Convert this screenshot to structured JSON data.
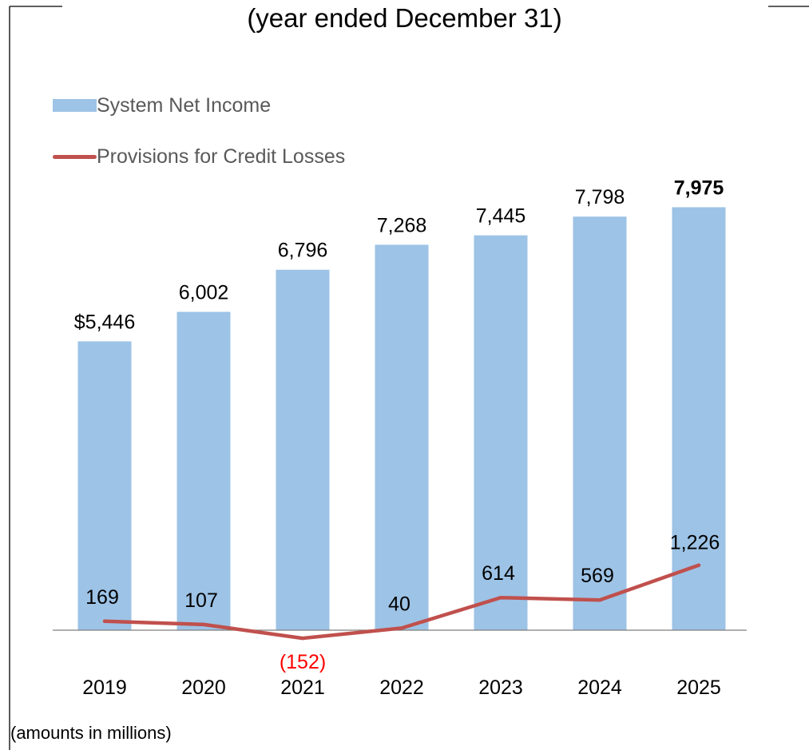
{
  "subtitle": "(year ended December 31)",
  "footnote": "(amounts in millions)",
  "legend": {
    "bar_label": "System Net Income",
    "line_label": "Provisions for Credit Losses"
  },
  "colors": {
    "bar": "#9dc3e6",
    "line": "#c0504d",
    "negative_label": "#ff0000",
    "axis": "#7f7f7f"
  },
  "chart_data": {
    "type": "bar",
    "categories": [
      "2019",
      "2020",
      "2021",
      "2022",
      "2023",
      "2024",
      "2025"
    ],
    "series": [
      {
        "name": "System Net Income",
        "type": "bar",
        "values": [
          5446,
          6002,
          6796,
          7268,
          7445,
          7798,
          7975
        ],
        "labels": [
          "$5,446",
          "6,002",
          "6,796",
          "7,268",
          "7,445",
          "7,798",
          "7,975"
        ],
        "bold_last_label": true
      },
      {
        "name": "Provisions for Credit Losses",
        "type": "line",
        "values": [
          169,
          107,
          -152,
          40,
          614,
          569,
          1226
        ],
        "labels": [
          "169",
          "107",
          "(152)",
          "40",
          "614",
          "569",
          "1,226"
        ]
      }
    ],
    "legend_position": "top-left",
    "grid": false
  }
}
